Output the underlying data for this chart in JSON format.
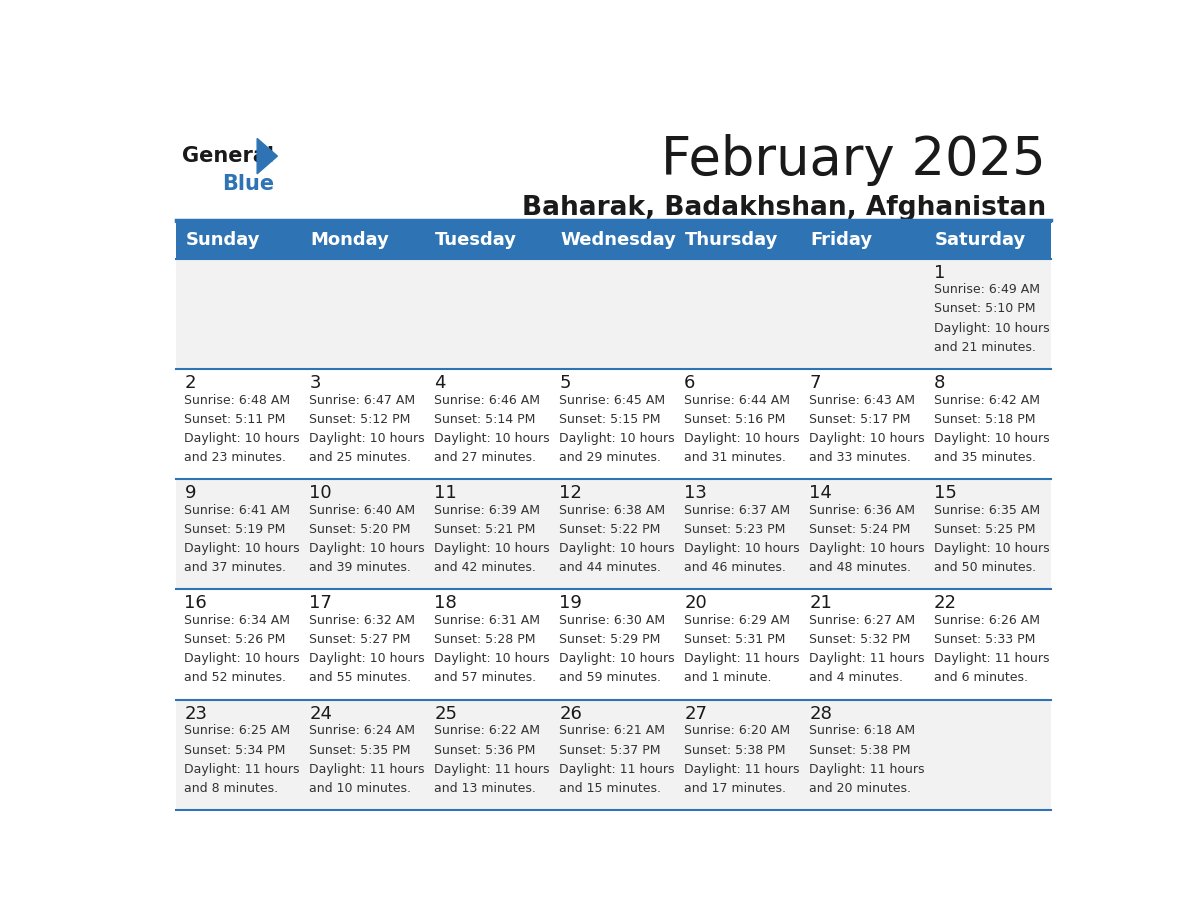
{
  "title": "February 2025",
  "subtitle": "Baharak, Badakhshan, Afghanistan",
  "header_bg": "#2E74B5",
  "header_text_color": "#FFFFFF",
  "day_names": [
    "Sunday",
    "Monday",
    "Tuesday",
    "Wednesday",
    "Thursday",
    "Friday",
    "Saturday"
  ],
  "row_bg_even": "#F2F2F2",
  "row_bg_odd": "#FFFFFF",
  "cell_text_color": "#333333",
  "date_color": "#1a1a1a",
  "divider_color": "#2E74B5",
  "background_color": "#FFFFFF",
  "calendar_data": [
    [
      null,
      null,
      null,
      null,
      null,
      null,
      {
        "day": 1,
        "sunrise": "6:49 AM",
        "sunset": "5:10 PM",
        "daylight_h": "10 hours",
        "daylight_m": "and 21 minutes."
      }
    ],
    [
      {
        "day": 2,
        "sunrise": "6:48 AM",
        "sunset": "5:11 PM",
        "daylight_h": "10 hours",
        "daylight_m": "and 23 minutes."
      },
      {
        "day": 3,
        "sunrise": "6:47 AM",
        "sunset": "5:12 PM",
        "daylight_h": "10 hours",
        "daylight_m": "and 25 minutes."
      },
      {
        "day": 4,
        "sunrise": "6:46 AM",
        "sunset": "5:14 PM",
        "daylight_h": "10 hours",
        "daylight_m": "and 27 minutes."
      },
      {
        "day": 5,
        "sunrise": "6:45 AM",
        "sunset": "5:15 PM",
        "daylight_h": "10 hours",
        "daylight_m": "and 29 minutes."
      },
      {
        "day": 6,
        "sunrise": "6:44 AM",
        "sunset": "5:16 PM",
        "daylight_h": "10 hours",
        "daylight_m": "and 31 minutes."
      },
      {
        "day": 7,
        "sunrise": "6:43 AM",
        "sunset": "5:17 PM",
        "daylight_h": "10 hours",
        "daylight_m": "and 33 minutes."
      },
      {
        "day": 8,
        "sunrise": "6:42 AM",
        "sunset": "5:18 PM",
        "daylight_h": "10 hours",
        "daylight_m": "and 35 minutes."
      }
    ],
    [
      {
        "day": 9,
        "sunrise": "6:41 AM",
        "sunset": "5:19 PM",
        "daylight_h": "10 hours",
        "daylight_m": "and 37 minutes."
      },
      {
        "day": 10,
        "sunrise": "6:40 AM",
        "sunset": "5:20 PM",
        "daylight_h": "10 hours",
        "daylight_m": "and 39 minutes."
      },
      {
        "day": 11,
        "sunrise": "6:39 AM",
        "sunset": "5:21 PM",
        "daylight_h": "10 hours",
        "daylight_m": "and 42 minutes."
      },
      {
        "day": 12,
        "sunrise": "6:38 AM",
        "sunset": "5:22 PM",
        "daylight_h": "10 hours",
        "daylight_m": "and 44 minutes."
      },
      {
        "day": 13,
        "sunrise": "6:37 AM",
        "sunset": "5:23 PM",
        "daylight_h": "10 hours",
        "daylight_m": "and 46 minutes."
      },
      {
        "day": 14,
        "sunrise": "6:36 AM",
        "sunset": "5:24 PM",
        "daylight_h": "10 hours",
        "daylight_m": "and 48 minutes."
      },
      {
        "day": 15,
        "sunrise": "6:35 AM",
        "sunset": "5:25 PM",
        "daylight_h": "10 hours",
        "daylight_m": "and 50 minutes."
      }
    ],
    [
      {
        "day": 16,
        "sunrise": "6:34 AM",
        "sunset": "5:26 PM",
        "daylight_h": "10 hours",
        "daylight_m": "and 52 minutes."
      },
      {
        "day": 17,
        "sunrise": "6:32 AM",
        "sunset": "5:27 PM",
        "daylight_h": "10 hours",
        "daylight_m": "and 55 minutes."
      },
      {
        "day": 18,
        "sunrise": "6:31 AM",
        "sunset": "5:28 PM",
        "daylight_h": "10 hours",
        "daylight_m": "and 57 minutes."
      },
      {
        "day": 19,
        "sunrise": "6:30 AM",
        "sunset": "5:29 PM",
        "daylight_h": "10 hours",
        "daylight_m": "and 59 minutes."
      },
      {
        "day": 20,
        "sunrise": "6:29 AM",
        "sunset": "5:31 PM",
        "daylight_h": "11 hours",
        "daylight_m": "and 1 minute."
      },
      {
        "day": 21,
        "sunrise": "6:27 AM",
        "sunset": "5:32 PM",
        "daylight_h": "11 hours",
        "daylight_m": "and 4 minutes."
      },
      {
        "day": 22,
        "sunrise": "6:26 AM",
        "sunset": "5:33 PM",
        "daylight_h": "11 hours",
        "daylight_m": "and 6 minutes."
      }
    ],
    [
      {
        "day": 23,
        "sunrise": "6:25 AM",
        "sunset": "5:34 PM",
        "daylight_h": "11 hours",
        "daylight_m": "and 8 minutes."
      },
      {
        "day": 24,
        "sunrise": "6:24 AM",
        "sunset": "5:35 PM",
        "daylight_h": "11 hours",
        "daylight_m": "and 10 minutes."
      },
      {
        "day": 25,
        "sunrise": "6:22 AM",
        "sunset": "5:36 PM",
        "daylight_h": "11 hours",
        "daylight_m": "and 13 minutes."
      },
      {
        "day": 26,
        "sunrise": "6:21 AM",
        "sunset": "5:37 PM",
        "daylight_h": "11 hours",
        "daylight_m": "and 15 minutes."
      },
      {
        "day": 27,
        "sunrise": "6:20 AM",
        "sunset": "5:38 PM",
        "daylight_h": "11 hours",
        "daylight_m": "and 17 minutes."
      },
      {
        "day": 28,
        "sunrise": "6:18 AM",
        "sunset": "5:38 PM",
        "daylight_h": "11 hours",
        "daylight_m": "and 20 minutes."
      },
      null
    ]
  ]
}
